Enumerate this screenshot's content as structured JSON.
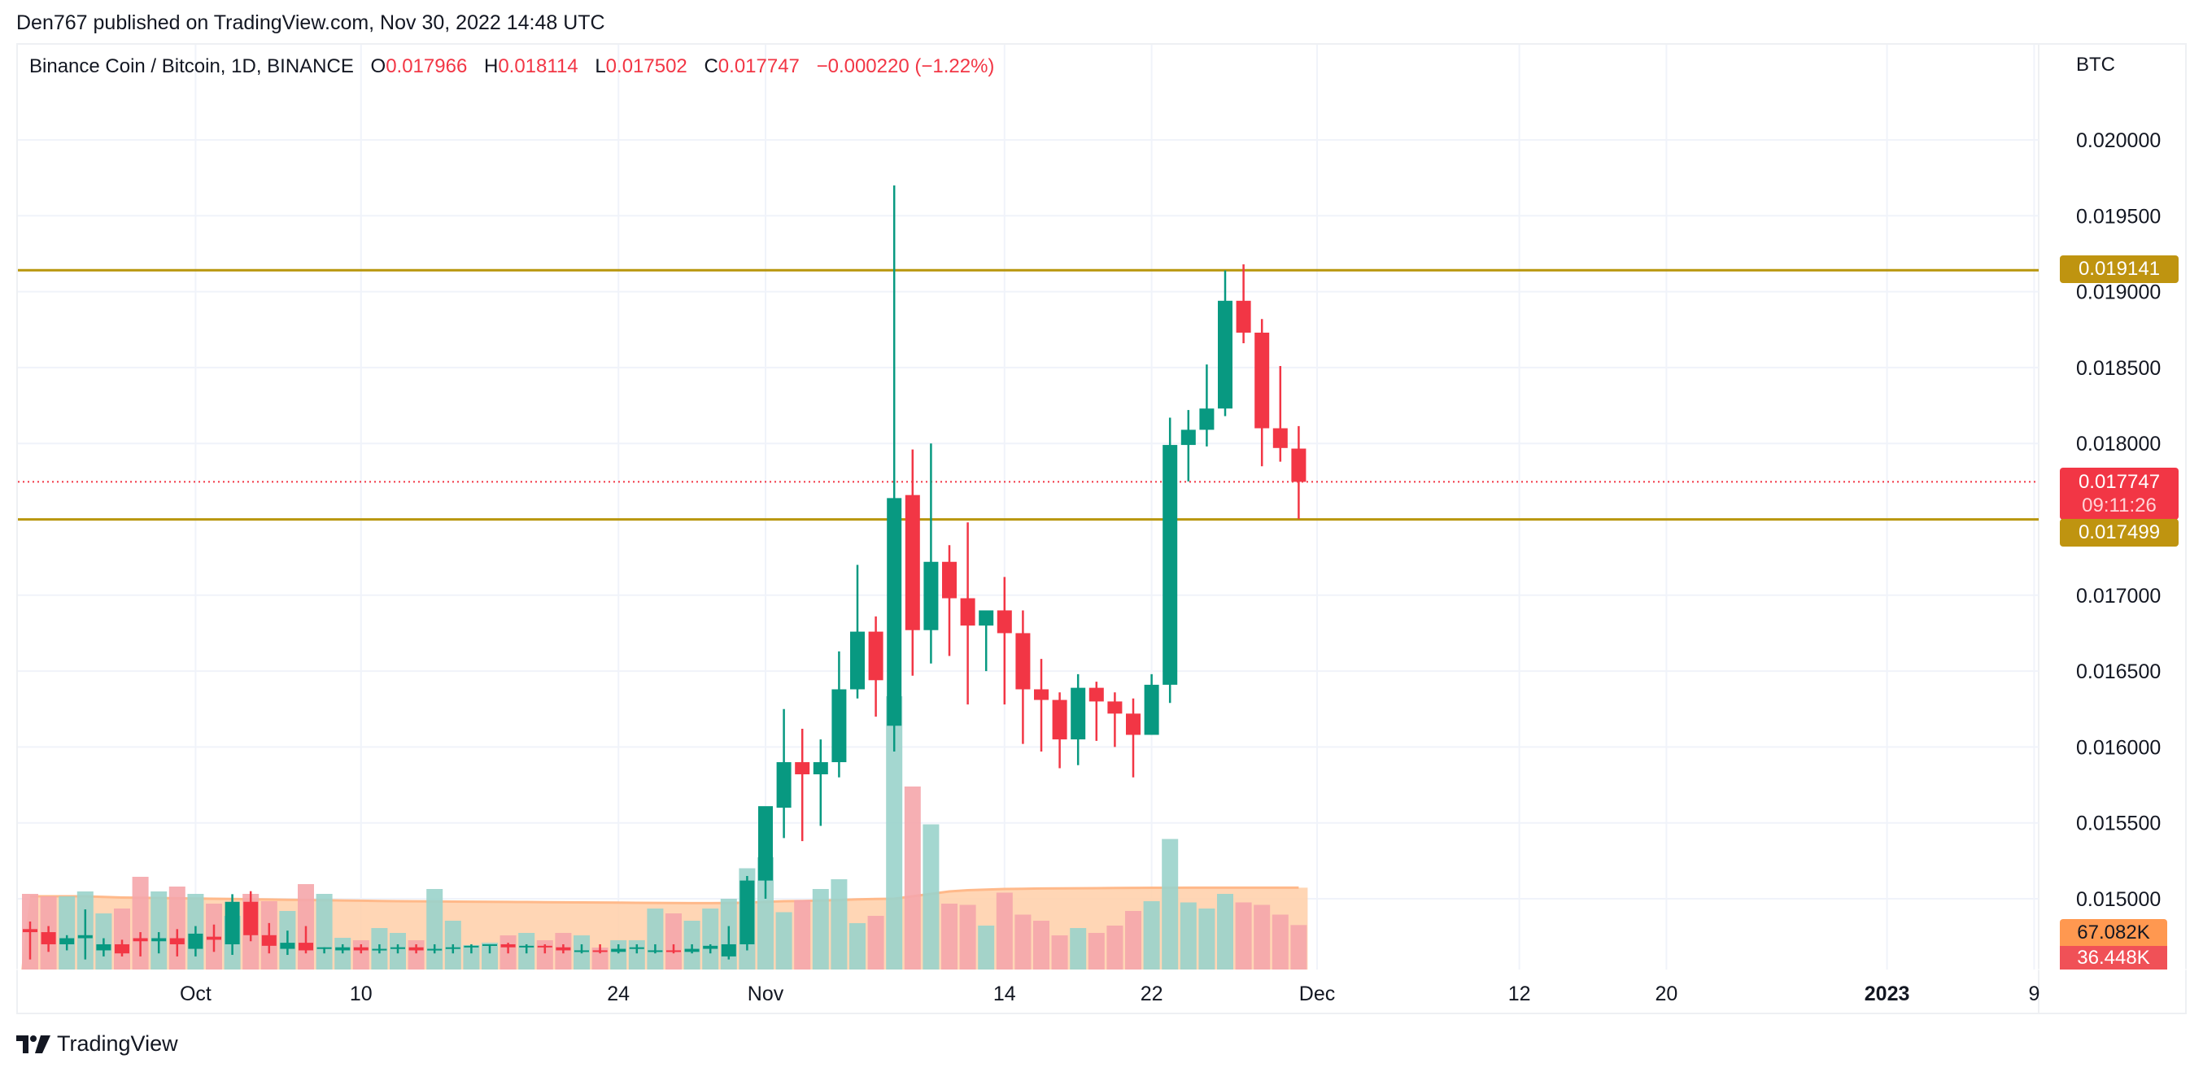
{
  "header": {
    "publisher_line": "Den767 published on TradingView.com, Nov 30, 2022 14:48 UTC"
  },
  "legend": {
    "symbol": "Binance Coin / Bitcoin, 1D, BINANCE",
    "open_label": "O",
    "open": "0.017966",
    "high_label": "H",
    "high": "0.018114",
    "low_label": "L",
    "low": "0.017502",
    "close_label": "C",
    "close": "0.017747",
    "change": "−0.000220 (−1.22%)"
  },
  "price_axis": {
    "currency": "BTC",
    "current_price_tag": "0.017747",
    "countdown_tag": "09:11:26",
    "resistance_tag": "0.019141",
    "support_tag": "0.017499",
    "volume_ma_tag": "67.082K",
    "volume_tag": "36.448K"
  },
  "footer": {
    "brand": "TradingView"
  },
  "colors": {
    "up": "#089981",
    "down": "#f23645",
    "level_line": "#b8960c",
    "level_tag": "#bf9410",
    "up_volume": "#9ad3cb",
    "down_volume": "#f5a6ab",
    "volume_ma": "#ff9850",
    "grid": "#f0f3fa"
  },
  "chart_data": {
    "type": "candlestick",
    "title": "Binance Coin / Bitcoin, 1D, BINANCE",
    "ylabel": "BTC",
    "ylim": [
      0.0146,
      0.02045
    ],
    "y_ticks": [
      "0.020000",
      "0.019500",
      "0.019000",
      "0.018500",
      "0.018000",
      "0.017500",
      "0.017000",
      "0.016500",
      "0.016000",
      "0.015500",
      "0.015000"
    ],
    "x_ticks": [
      {
        "label": "Oct",
        "day": -31,
        "bold": false
      },
      {
        "label": "10",
        "day": -22,
        "bold": false
      },
      {
        "label": "24",
        "day": -8,
        "bold": false
      },
      {
        "label": "Nov",
        "day": 0,
        "bold": false
      },
      {
        "label": "14",
        "day": 13,
        "bold": false
      },
      {
        "label": "22",
        "day": 21,
        "bold": false
      },
      {
        "label": "Dec",
        "day": 30,
        "bold": false
      },
      {
        "label": "12",
        "day": 41,
        "bold": false
      },
      {
        "label": "20",
        "day": 49,
        "bold": false
      },
      {
        "label": "2023",
        "day": 61,
        "bold": true
      },
      {
        "label": "9",
        "day": 69,
        "bold": false
      }
    ],
    "horizontal_levels": [
      {
        "price": 0.019141,
        "label": "0.019141"
      },
      {
        "price": 0.017499,
        "label": "0.017499"
      }
    ],
    "current_price": 0.017747,
    "volume_ma_last": 67082,
    "volume_last": 36448,
    "candles": [
      {
        "date": "2022-09-22",
        "o": 0.0148,
        "h": 0.01485,
        "l": 0.0146,
        "c": 0.01478,
        "v": 62000
      },
      {
        "date": "2022-09-23",
        "o": 0.01478,
        "h": 0.01482,
        "l": 0.01465,
        "c": 0.0147,
        "v": 60000
      },
      {
        "date": "2022-09-24",
        "o": 0.0147,
        "h": 0.01476,
        "l": 0.01466,
        "c": 0.01474,
        "v": 60000
      },
      {
        "date": "2022-09-25",
        "o": 0.01474,
        "h": 0.01493,
        "l": 0.0146,
        "c": 0.01476,
        "v": 64000
      },
      {
        "date": "2022-09-26",
        "o": 0.01466,
        "h": 0.01474,
        "l": 0.01462,
        "c": 0.0147,
        "v": 46000
      },
      {
        "date": "2022-09-27",
        "o": 0.0147,
        "h": 0.01473,
        "l": 0.01462,
        "c": 0.01464,
        "v": 50000
      },
      {
        "date": "2022-09-28",
        "o": 0.01474,
        "h": 0.01478,
        "l": 0.01462,
        "c": 0.01472,
        "v": 76000
      },
      {
        "date": "2022-09-29",
        "o": 0.01472,
        "h": 0.01478,
        "l": 0.01464,
        "c": 0.01474,
        "v": 64000
      },
      {
        "date": "2022-09-30",
        "o": 0.01474,
        "h": 0.0148,
        "l": 0.01462,
        "c": 0.0147,
        "v": 68000
      },
      {
        "date": "2022-10-01",
        "o": 0.01467,
        "h": 0.01482,
        "l": 0.01462,
        "c": 0.01477,
        "v": 62000
      },
      {
        "date": "2022-10-02",
        "o": 0.01475,
        "h": 0.01483,
        "l": 0.01465,
        "c": 0.01473,
        "v": 54000
      },
      {
        "date": "2022-10-03",
        "o": 0.0147,
        "h": 0.01503,
        "l": 0.01463,
        "c": 0.01498,
        "v": 44000
      },
      {
        "date": "2022-10-04",
        "o": 0.01498,
        "h": 0.01505,
        "l": 0.01472,
        "c": 0.01476,
        "v": 62000
      },
      {
        "date": "2022-10-05",
        "o": 0.01476,
        "h": 0.01484,
        "l": 0.01464,
        "c": 0.01469,
        "v": 56000
      },
      {
        "date": "2022-10-06",
        "o": 0.01467,
        "h": 0.01479,
        "l": 0.01463,
        "c": 0.01471,
        "v": 48000
      },
      {
        "date": "2022-10-07",
        "o": 0.01471,
        "h": 0.01482,
        "l": 0.01464,
        "c": 0.01466,
        "v": 70000
      },
      {
        "date": "2022-10-08",
        "o": 0.01467,
        "h": 0.01468,
        "l": 0.01464,
        "c": 0.01468,
        "v": 62000
      },
      {
        "date": "2022-10-09",
        "o": 0.01466,
        "h": 0.0147,
        "l": 0.01464,
        "c": 0.01468,
        "v": 26000
      },
      {
        "date": "2022-10-10",
        "o": 0.01468,
        "h": 0.0147,
        "l": 0.01464,
        "c": 0.01466,
        "v": 24000
      },
      {
        "date": "2022-10-11",
        "o": 0.01466,
        "h": 0.0147,
        "l": 0.01464,
        "c": 0.01467,
        "v": 34000
      },
      {
        "date": "2022-10-12",
        "o": 0.01467,
        "h": 0.0147,
        "l": 0.01464,
        "c": 0.01468,
        "v": 30000
      },
      {
        "date": "2022-10-13",
        "o": 0.01468,
        "h": 0.0147,
        "l": 0.01464,
        "c": 0.01466,
        "v": 24000
      },
      {
        "date": "2022-10-14",
        "o": 0.01466,
        "h": 0.0147,
        "l": 0.01464,
        "c": 0.01467,
        "v": 66000
      },
      {
        "date": "2022-10-15",
        "o": 0.01467,
        "h": 0.0147,
        "l": 0.01464,
        "c": 0.01468,
        "v": 40000
      },
      {
        "date": "2022-10-16",
        "o": 0.01468,
        "h": 0.0147,
        "l": 0.01464,
        "c": 0.01469,
        "v": 20000
      },
      {
        "date": "2022-10-17",
        "o": 0.01469,
        "h": 0.0147,
        "l": 0.01464,
        "c": 0.0147,
        "v": 22000
      },
      {
        "date": "2022-10-18",
        "o": 0.0147,
        "h": 0.01471,
        "l": 0.01464,
        "c": 0.01468,
        "v": 28000
      },
      {
        "date": "2022-10-19",
        "o": 0.01468,
        "h": 0.0147,
        "l": 0.01464,
        "c": 0.01469,
        "v": 30000
      },
      {
        "date": "2022-10-20",
        "o": 0.01469,
        "h": 0.0147,
        "l": 0.01464,
        "c": 0.01468,
        "v": 24000
      },
      {
        "date": "2022-10-21",
        "o": 0.01468,
        "h": 0.0147,
        "l": 0.01464,
        "c": 0.01466,
        "v": 30000
      },
      {
        "date": "2022-10-22",
        "o": 0.01466,
        "h": 0.0147,
        "l": 0.01464,
        "c": 0.01466,
        "v": 28000
      },
      {
        "date": "2022-10-23",
        "o": 0.01466,
        "h": 0.0147,
        "l": 0.01464,
        "c": 0.01465,
        "v": 18000
      },
      {
        "date": "2022-10-24",
        "o": 0.01465,
        "h": 0.0147,
        "l": 0.01464,
        "c": 0.01467,
        "v": 24000
      },
      {
        "date": "2022-10-25",
        "o": 0.01467,
        "h": 0.0147,
        "l": 0.01464,
        "c": 0.01468,
        "v": 24000
      },
      {
        "date": "2022-10-26",
        "o": 0.01466,
        "h": 0.0147,
        "l": 0.01464,
        "c": 0.01466,
        "v": 50000
      },
      {
        "date": "2022-10-27",
        "o": 0.01466,
        "h": 0.0147,
        "l": 0.01464,
        "c": 0.01465,
        "v": 46000
      },
      {
        "date": "2022-10-28",
        "o": 0.01465,
        "h": 0.0147,
        "l": 0.01464,
        "c": 0.01467,
        "v": 40000
      },
      {
        "date": "2022-10-29",
        "o": 0.01467,
        "h": 0.0147,
        "l": 0.01464,
        "c": 0.01469,
        "v": 50000
      },
      {
        "date": "2022-10-30",
        "o": 0.01462,
        "h": 0.01482,
        "l": 0.0146,
        "c": 0.0147,
        "v": 58000
      },
      {
        "date": "2022-10-31",
        "o": 0.0147,
        "h": 0.01515,
        "l": 0.01466,
        "c": 0.01512,
        "v": 83000
      },
      {
        "date": "2022-11-01",
        "o": 0.01512,
        "h": 0.0156,
        "l": 0.015,
        "c": 0.01561,
        "v": 92000
      },
      {
        "date": "2022-11-02",
        "o": 0.0156,
        "h": 0.01625,
        "l": 0.0154,
        "c": 0.0159,
        "v": 47000
      },
      {
        "date": "2022-11-03",
        "o": 0.0159,
        "h": 0.01612,
        "l": 0.01538,
        "c": 0.01582,
        "v": 57000
      },
      {
        "date": "2022-11-04",
        "o": 0.01582,
        "h": 0.01605,
        "l": 0.01548,
        "c": 0.0159,
        "v": 66000
      },
      {
        "date": "2022-11-05",
        "o": 0.0159,
        "h": 0.01663,
        "l": 0.0158,
        "c": 0.01638,
        "v": 74000
      },
      {
        "date": "2022-11-06",
        "o": 0.01638,
        "h": 0.0172,
        "l": 0.01632,
        "c": 0.01676,
        "v": 38000
      },
      {
        "date": "2022-11-07",
        "o": 0.01676,
        "h": 0.01686,
        "l": 0.0162,
        "c": 0.01644,
        "v": 44000
      },
      {
        "date": "2022-11-08",
        "o": 0.01614,
        "h": 0.0197,
        "l": 0.01597,
        "c": 0.01764,
        "v": 224000
      },
      {
        "date": "2022-11-09",
        "o": 0.01766,
        "h": 0.01796,
        "l": 0.01647,
        "c": 0.01677,
        "v": 150000
      },
      {
        "date": "2022-11-10",
        "o": 0.01677,
        "h": 0.018,
        "l": 0.01655,
        "c": 0.01722,
        "v": 119000
      },
      {
        "date": "2022-11-11",
        "o": 0.01722,
        "h": 0.01733,
        "l": 0.0166,
        "c": 0.01698,
        "v": 54000
      },
      {
        "date": "2022-11-12",
        "o": 0.01698,
        "h": 0.01748,
        "l": 0.01628,
        "c": 0.0168,
        "v": 53000
      },
      {
        "date": "2022-11-13",
        "o": 0.0168,
        "h": 0.01687,
        "l": 0.0165,
        "c": 0.0169,
        "v": 36000
      },
      {
        "date": "2022-11-14",
        "o": 0.0169,
        "h": 0.01712,
        "l": 0.01628,
        "c": 0.01675,
        "v": 63000
      },
      {
        "date": "2022-11-15",
        "o": 0.01675,
        "h": 0.0169,
        "l": 0.01602,
        "c": 0.01638,
        "v": 45000
      },
      {
        "date": "2022-11-16",
        "o": 0.01638,
        "h": 0.01658,
        "l": 0.01597,
        "c": 0.01631,
        "v": 40000
      },
      {
        "date": "2022-11-17",
        "o": 0.01631,
        "h": 0.01636,
        "l": 0.01586,
        "c": 0.01605,
        "v": 28000
      },
      {
        "date": "2022-11-18",
        "o": 0.01605,
        "h": 0.01648,
        "l": 0.01588,
        "c": 0.01639,
        "v": 34000
      },
      {
        "date": "2022-11-19",
        "o": 0.01639,
        "h": 0.01643,
        "l": 0.01604,
        "c": 0.0163,
        "v": 30000
      },
      {
        "date": "2022-11-20",
        "o": 0.0163,
        "h": 0.01636,
        "l": 0.016,
        "c": 0.01622,
        "v": 36000
      },
      {
        "date": "2022-11-21",
        "o": 0.01622,
        "h": 0.01632,
        "l": 0.0158,
        "c": 0.01608,
        "v": 48000
      },
      {
        "date": "2022-11-22",
        "o": 0.01608,
        "h": 0.01648,
        "l": 0.01608,
        "c": 0.01641,
        "v": 56000
      },
      {
        "date": "2022-11-23",
        "o": 0.01641,
        "h": 0.01817,
        "l": 0.01629,
        "c": 0.01799,
        "v": 107000
      },
      {
        "date": "2022-11-24",
        "o": 0.01799,
        "h": 0.01822,
        "l": 0.01775,
        "c": 0.01809,
        "v": 55000
      },
      {
        "date": "2022-11-25",
        "o": 0.01809,
        "h": 0.01852,
        "l": 0.01798,
        "c": 0.01823,
        "v": 50000
      },
      {
        "date": "2022-11-26",
        "o": 0.01823,
        "h": 0.01914,
        "l": 0.01818,
        "c": 0.01894,
        "v": 62000
      },
      {
        "date": "2022-11-27",
        "o": 0.01894,
        "h": 0.01918,
        "l": 0.01866,
        "c": 0.01873,
        "v": 55000
      },
      {
        "date": "2022-11-28",
        "o": 0.01873,
        "h": 0.01882,
        "l": 0.01785,
        "c": 0.0181,
        "v": 53000
      },
      {
        "date": "2022-11-29",
        "o": 0.0181,
        "h": 0.01851,
        "l": 0.01788,
        "c": 0.01797,
        "v": 45000
      },
      {
        "date": "2022-11-30",
        "o": 0.017966,
        "h": 0.018114,
        "l": 0.017502,
        "c": 0.017747,
        "v": 36448
      }
    ],
    "volume_ma": [
      60000,
      60000,
      60000,
      60000,
      59500,
      59000,
      58800,
      58600,
      58400,
      58200,
      58000,
      57800,
      57600,
      57400,
      57200,
      57000,
      56800,
      56600,
      56400,
      56200,
      56000,
      55900,
      55800,
      55700,
      55600,
      55500,
      55400,
      55300,
      55200,
      55100,
      55000,
      54900,
      54800,
      54700,
      54600,
      54500,
      54400,
      54400,
      54500,
      54800,
      55500,
      56000,
      56200,
      56500,
      57000,
      57500,
      57800,
      58000,
      60000,
      62000,
      64000,
      65000,
      65500,
      66000,
      66200,
      66400,
      66500,
      66600,
      66700,
      66800,
      66900,
      67000,
      67000,
      67050,
      67080,
      67082,
      67082,
      67082,
      67082,
      67082
    ]
  }
}
